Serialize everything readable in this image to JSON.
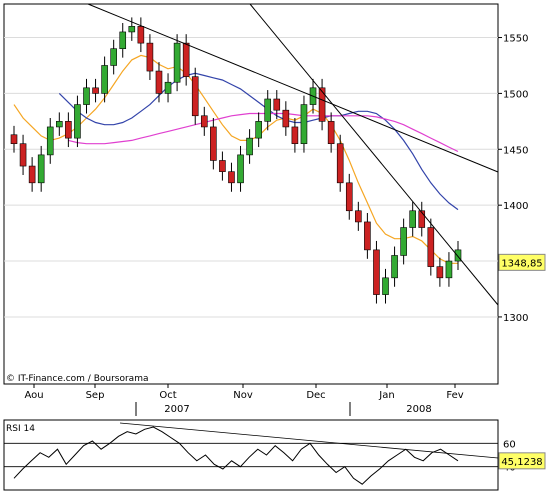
{
  "chart_data": [
    {
      "type": "candlestick",
      "source": "© IT-Finance.com / Boursorama",
      "x_tick_labels": [
        "Aou",
        "Sep",
        "Oct",
        "Nov",
        "Dec",
        "Jan",
        "Fev"
      ],
      "year_labels": [
        "2007",
        "2008"
      ],
      "y_ticks": [
        1300,
        1350,
        1400,
        1450,
        1500,
        1550
      ],
      "y_tick_labels": [
        "1300",
        "1400",
        "1450",
        "1500",
        "1550"
      ],
      "ylim": [
        1240,
        1580
      ],
      "last_price": 1348.85,
      "last_price_label": "1348,85",
      "close_series_weekly": [
        1455,
        1435,
        1420,
        1445,
        1470,
        1475,
        1460,
        1490,
        1505,
        1500,
        1525,
        1540,
        1555,
        1560,
        1545,
        1520,
        1500,
        1510,
        1545,
        1515,
        1480,
        1470,
        1440,
        1430,
        1420,
        1445,
        1460,
        1475,
        1495,
        1485,
        1470,
        1455,
        1490,
        1505,
        1475,
        1455,
        1420,
        1395,
        1385,
        1360,
        1320,
        1335,
        1355,
        1380,
        1395,
        1380,
        1345,
        1335,
        1350,
        1360
      ],
      "moving_averages": [
        {
          "color": "#f5a623",
          "values": [
            1490,
            1478,
            1470,
            1462,
            1458,
            1460,
            1464,
            1470,
            1478,
            1486,
            1496,
            1508,
            1520,
            1530,
            1534,
            1532,
            1526,
            1522,
            1524,
            1518,
            1508,
            1496,
            1484,
            1472,
            1462,
            1458,
            1458,
            1462,
            1470,
            1476,
            1478,
            1476,
            1480,
            1486,
            1482,
            1472,
            1458,
            1440,
            1420,
            1402,
            1384,
            1374,
            1370,
            1370,
            1372,
            1368,
            1360,
            1352,
            1348,
            1348
          ]
        },
        {
          "color": "#3344aa",
          "values": [
            1500,
            1492,
            1484,
            1478,
            1474,
            1472,
            1472,
            1474,
            1478,
            1484,
            1490,
            1498,
            1506,
            1512,
            1516,
            1518,
            1516,
            1514,
            1512,
            1508,
            1504,
            1498,
            1492,
            1486,
            1480,
            1476,
            1474,
            1474,
            1476,
            1478,
            1480,
            1480,
            1482,
            1484,
            1484,
            1482,
            1476,
            1468,
            1458,
            1446,
            1432,
            1420,
            1410,
            1402,
            1396
          ]
        },
        {
          "color": "#e040d0",
          "values": [
            1458,
            1456,
            1455,
            1455,
            1455,
            1456,
            1457,
            1458,
            1460,
            1462,
            1464,
            1466,
            1468,
            1470,
            1472,
            1474,
            1476,
            1478,
            1480,
            1481,
            1482,
            1482,
            1482,
            1482,
            1482,
            1481,
            1480,
            1480,
            1480,
            1480,
            1480,
            1480,
            1480,
            1480,
            1479,
            1477,
            1475,
            1472,
            1468,
            1464,
            1460,
            1456,
            1452,
            1448
          ]
        }
      ]
    },
    {
      "type": "line",
      "title": "RSI 14",
      "y_tick_labels": [
        "60",
        "40"
      ],
      "last_value_label": "45,1238",
      "values": [
        30,
        38,
        45,
        52,
        48,
        55,
        42,
        50,
        58,
        62,
        55,
        60,
        66,
        70,
        68,
        72,
        74,
        70,
        65,
        60,
        52,
        45,
        50,
        42,
        38,
        45,
        40,
        48,
        55,
        50,
        58,
        52,
        45,
        55,
        60,
        50,
        42,
        35,
        40,
        30,
        25,
        32,
        38,
        45,
        50,
        55,
        48,
        45,
        52,
        55,
        50,
        45
      ]
    }
  ]
}
